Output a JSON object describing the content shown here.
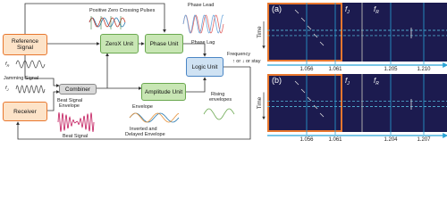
{
  "nodes": [
    {
      "label": "Reference Signal"
    },
    {
      "label": "Receiver"
    },
    {
      "label": "Combiner"
    },
    {
      "label": "ZeroX Unit"
    },
    {
      "label": "Phase Unit"
    },
    {
      "label": "Amplitude Unit"
    },
    {
      "label": "Logic Unit"
    }
  ],
  "signals": {
    "reference": {
      "symbol": "f",
      "subscript": "R"
    },
    "jamming_title": "Jamming Signal",
    "jamming": {
      "symbol": "f",
      "subscript": "J"
    }
  },
  "annotations": {
    "zero_crossing": "Positive Zero Crossing Pulses",
    "phase_lead": "Phase Lead",
    "phase_lag": "Phase Lag",
    "frequency": [
      "Frequency",
      "↑ or ↓ or stay"
    ],
    "beat_envelope": [
      "Beat Signal",
      "Envelope"
    ],
    "beat_signal": "Beat Signal",
    "envelope": "Envelope",
    "inverted": [
      "Inverted and",
      "Delayed Envelope"
    ],
    "rising": [
      "Rising",
      "envelopes"
    ]
  },
  "panels": [
    {
      "label": "(a)",
      "axis": "Time",
      "fj": {
        "symbol": "f",
        "subscript": "J"
      },
      "fr": {
        "symbol": "f",
        "subscript": "R"
      },
      "ticks": [
        "1.056",
        "1.061",
        "1.205",
        "1.210"
      ]
    },
    {
      "label": "(b)",
      "axis": "Time",
      "fj": {
        "symbol": "f",
        "subscript": "J"
      },
      "fr": {
        "symbol": "f",
        "subscript": "R"
      },
      "ticks": [
        "1.056",
        "1.061",
        "1.204",
        "1.207"
      ]
    }
  ]
}
